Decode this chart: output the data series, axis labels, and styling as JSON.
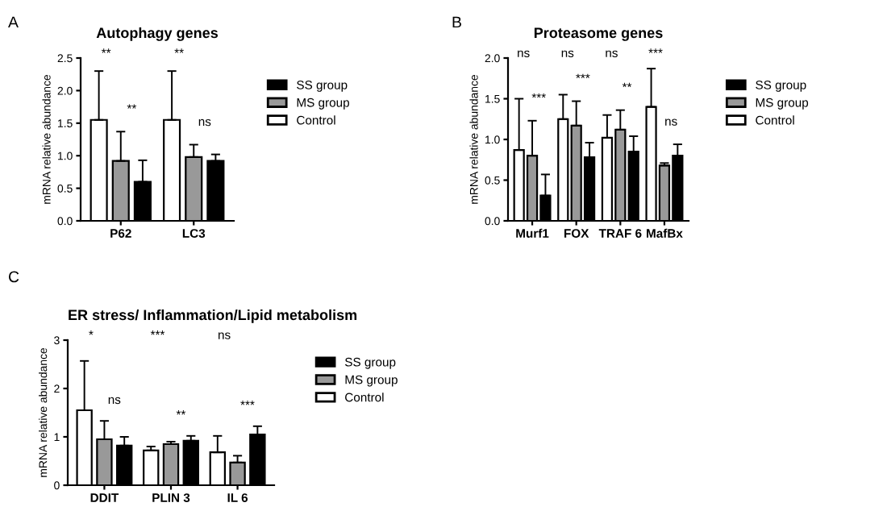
{
  "chart_data": [
    {
      "type": "bar",
      "title": "Autophagy genes",
      "ylabel": "mRNA relative abundance",
      "categories": [
        "P62",
        "LC3"
      ],
      "ylim": [
        0,
        2.5
      ],
      "yticks": [
        {
          "value": 0,
          "label": "0.0"
        },
        0.5,
        {
          "value": 1,
          "label": "1.0"
        },
        1.5,
        {
          "value": 2,
          "label": "2.0"
        },
        2.5
      ],
      "legend": "right",
      "grid": false,
      "series": [
        {
          "name": "Control",
          "color": "#ffffff",
          "values": [
            1.55,
            1.55
          ],
          "errors": [
            [
              1.55,
              2.3
            ],
            [
              1.55,
              2.3
            ]
          ]
        },
        {
          "name": "MS group",
          "color": "#999999",
          "values": [
            0.92,
            0.98
          ],
          "errors": [
            [
              0.92,
              1.37
            ],
            [
              0.98,
              1.17
            ]
          ]
        },
        {
          "name": "SS group",
          "color": "#000000",
          "values": [
            0.6,
            0.92
          ],
          "errors": [
            [
              0.6,
              0.93
            ],
            [
              0.92,
              1.02
            ]
          ]
        }
      ],
      "annotations": [
        "A",
        "**",
        "**",
        "**",
        "ns"
      ]
    },
    {
      "type": "bar",
      "title": "Proteasome genes",
      "ylabel": "mRNA relative abundance",
      "categories": [
        "Murf1",
        "FOX",
        "TRAF 6",
        "MafBx"
      ],
      "ylim": [
        0,
        2.0
      ],
      "yticks": [
        {
          "value": 0,
          "label": "0.0"
        },
        0.5,
        {
          "value": 1,
          "label": "1.0"
        },
        1.5,
        {
          "value": 2,
          "label": "2.0"
        }
      ],
      "legend": "right",
      "grid": false,
      "series": [
        {
          "name": "Control",
          "color": "#ffffff",
          "values": [
            0.87,
            1.25,
            1.02,
            1.4
          ],
          "errors": [
            [
              0.87,
              1.5
            ],
            [
              1.25,
              1.55
            ],
            [
              1.02,
              1.3
            ],
            [
              1.4,
              1.87
            ]
          ]
        },
        {
          "name": "MS group",
          "color": "#999999",
          "values": [
            0.8,
            1.17,
            1.12,
            0.68
          ],
          "errors": [
            [
              0.8,
              1.23
            ],
            [
              1.17,
              1.47
            ],
            [
              1.12,
              1.36
            ],
            [
              0.68,
              0.71
            ]
          ]
        },
        {
          "name": "SS group",
          "color": "#000000",
          "values": [
            0.31,
            0.78,
            0.85,
            0.8
          ],
          "errors": [
            [
              0.31,
              0.57
            ],
            [
              0.78,
              0.96
            ],
            [
              0.85,
              1.04
            ],
            [
              0.8,
              0.94
            ]
          ]
        }
      ],
      "annotations": [
        "B",
        "ns",
        "***",
        "ns",
        "***",
        "ns",
        "**",
        "***",
        "ns"
      ]
    },
    {
      "type": "bar",
      "title": "ER stress/ Inflammation/Lipid metabolism",
      "ylabel": "mRNA relative abundance",
      "categories": [
        "DDIT",
        "PLIN 3",
        "IL 6"
      ],
      "ylim": [
        0,
        3
      ],
      "yticks": [
        0,
        1,
        2,
        3
      ],
      "legend": "right",
      "grid": false,
      "series": [
        {
          "name": "Control",
          "color": "#ffffff",
          "values": [
            1.55,
            0.72,
            0.68
          ],
          "errors": [
            [
              1.55,
              2.57
            ],
            [
              0.72,
              0.8
            ],
            [
              0.68,
              1.02
            ]
          ]
        },
        {
          "name": "MS group",
          "color": "#999999",
          "values": [
            0.95,
            0.85,
            0.47
          ],
          "errors": [
            [
              0.95,
              1.33
            ],
            [
              0.85,
              0.9
            ],
            [
              0.47,
              0.61
            ]
          ]
        },
        {
          "name": "SS group",
          "color": "#000000",
          "values": [
            0.82,
            0.92,
            1.05
          ],
          "errors": [
            [
              0.82,
              1.0
            ],
            [
              0.92,
              1.02
            ],
            [
              1.05,
              1.22
            ]
          ]
        }
      ],
      "annotations": [
        "C",
        "*",
        "ns",
        "***",
        "**",
        "ns",
        "***"
      ]
    }
  ]
}
